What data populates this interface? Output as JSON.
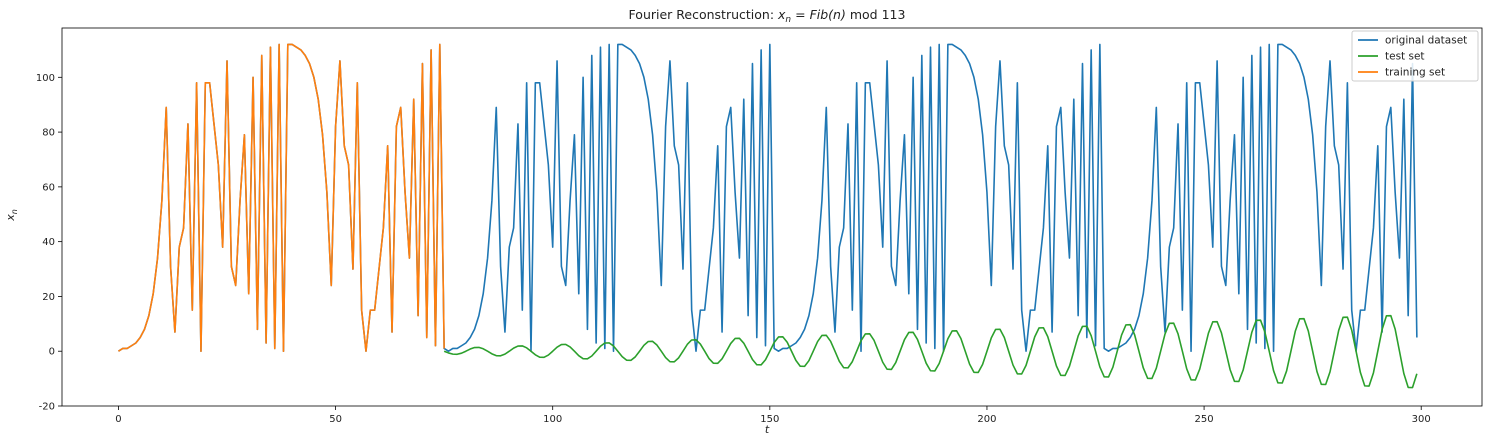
{
  "chart_data": {
    "type": "line",
    "title_prefix": "Fourier Reconstruction: ",
    "title_math": "x",
    "title_math_sub": "n",
    "title_eq": " = ",
    "title_fn": "Fib",
    "title_fn_arg": "(n)",
    "title_suffix": " mod 113",
    "xlabel": "t",
    "ylabel": "x",
    "ylabel_sub": "n",
    "xlim": [
      -13,
      314
    ],
    "ylim": [
      -20,
      118
    ],
    "xticks": [
      0,
      50,
      100,
      150,
      200,
      250,
      300
    ],
    "yticks": [
      -20,
      0,
      20,
      40,
      60,
      80,
      100
    ],
    "grid": false,
    "legend_position": "top-right",
    "series": [
      {
        "name": "original dataset",
        "color": "#1f77b4",
        "rule": "x_t = Fib(t) mod 113, t = 0..299",
        "x_start": 0,
        "x_end": 299,
        "modulus": 113
      },
      {
        "name": "test set",
        "color": "#2ca02c",
        "rule": "growing-amplitude sinusoid, t = 75..299",
        "x_start": 75,
        "x_end": 299,
        "amp_start": 1.0,
        "amp_end": 14.0,
        "period": 10.0
      },
      {
        "name": "training set",
        "color": "#ff7f0e",
        "rule": "Fib(t) mod 113, t = 0..75",
        "x_start": 0,
        "x_end": 75,
        "modulus": 113
      }
    ],
    "legend_order": [
      "original dataset",
      "test set",
      "training set"
    ]
  }
}
